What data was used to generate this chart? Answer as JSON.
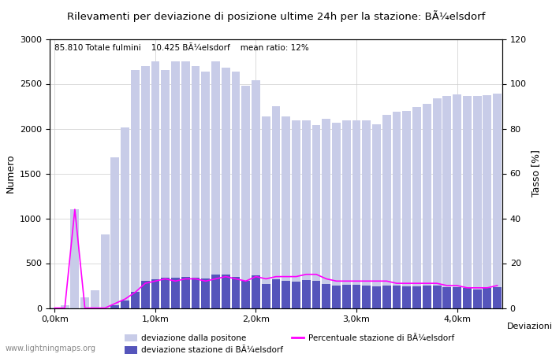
{
  "title": "Rilevamenti per deviazione di posizione ultime 24h per la stazione: BÃ¼elsdorf",
  "subtitle": "85.810 Totale fulmini    10.425 BÃ¼elsdorf    mean ratio: 12%",
  "xlabel": "Deviazioni",
  "ylabel_left": "Numero",
  "ylabel_right": "Tasso [%]",
  "xlim_left": -0.5,
  "xlim_right": 44.5,
  "ylim_left": [
    0,
    3000
  ],
  "ylim_right": [
    0,
    120
  ],
  "xtick_labels": [
    "0,0km",
    "1,0km",
    "2,0km",
    "3,0km",
    "4,0km"
  ],
  "xtick_positions": [
    0,
    10,
    20,
    30,
    40
  ],
  "ytick_left": [
    0,
    500,
    1000,
    1500,
    2000,
    2500,
    3000
  ],
  "ytick_right": [
    0,
    20,
    40,
    60,
    80,
    100,
    120
  ],
  "bar_color_light": "#c8cce8",
  "bar_color_dark": "#5555bb",
  "line_color": "#ff00ff",
  "watermark": "www.lightningmaps.org",
  "bar_values_light": [
    5,
    30,
    1100,
    120,
    200,
    820,
    1680,
    2010,
    2650,
    2700,
    2750,
    2650,
    2750,
    2750,
    2700,
    2640,
    2750,
    2680,
    2640,
    2480,
    2540,
    2140,
    2250,
    2140,
    2090,
    2090,
    2040,
    2110,
    2070,
    2090,
    2090,
    2090,
    2050,
    2150,
    2190,
    2200,
    2240,
    2280,
    2340,
    2360,
    2380,
    2360,
    2360,
    2370,
    2390
  ],
  "bar_values_dark": [
    0,
    0,
    0,
    0,
    0,
    0,
    30,
    80,
    180,
    300,
    320,
    340,
    340,
    350,
    340,
    330,
    370,
    370,
    350,
    300,
    360,
    270,
    320,
    300,
    290,
    310,
    300,
    270,
    250,
    260,
    260,
    250,
    240,
    250,
    250,
    240,
    240,
    250,
    250,
    230,
    230,
    220,
    210,
    220,
    230
  ],
  "line_values_pct": [
    0,
    0,
    44,
    0,
    0,
    0,
    2,
    4,
    7,
    11,
    12,
    13,
    12,
    13,
    13,
    12,
    13,
    14,
    13,
    12,
    14,
    13,
    14,
    14,
    14,
    15,
    15,
    13,
    12,
    12,
    12,
    12,
    12,
    12,
    11,
    11,
    11,
    11,
    11,
    10,
    10,
    9,
    9,
    9,
    10
  ],
  "background_color": "#ffffff",
  "grid_color": "#cccccc",
  "legend_light_label": "deviazione dalla positone",
  "legend_dark_label": "deviazione stazione di BÃ¼elsdorf",
  "legend_line_label": "Percentuale stazione di BÃ¼elsdorf"
}
